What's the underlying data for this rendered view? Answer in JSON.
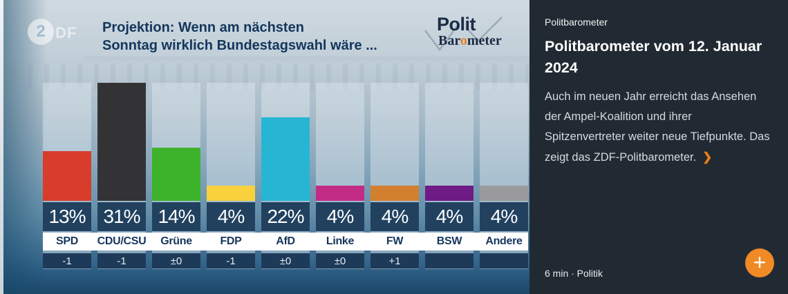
{
  "chart": {
    "zdf_logo": {
      "circle_char": "2",
      "rest": "DF"
    },
    "title_line1": "Projektion: Wenn am nächsten",
    "title_line2": "Sonntag wirklich Bundestagswahl wäre ...",
    "logo": {
      "polit": "Polit",
      "bar": "Bar",
      "o": "o",
      "meter": "meter"
    }
  },
  "chart_data": {
    "type": "bar",
    "title": "Projektion: Wenn am nächsten Sonntag wirklich Bundestagswahl wäre ...",
    "categories": [
      "SPD",
      "CDU/CSU",
      "Grüne",
      "FDP",
      "AfD",
      "Linke",
      "FW",
      "BSW",
      "Andere"
    ],
    "values": [
      13,
      31,
      14,
      4,
      22,
      4,
      4,
      4,
      4
    ],
    "value_labels": [
      "13%",
      "31%",
      "14%",
      "4%",
      "22%",
      "4%",
      "4%",
      "4%",
      "4%"
    ],
    "changes": [
      "-1",
      "-1",
      "±0",
      "-1",
      "±0",
      "±0",
      "+1",
      "",
      ""
    ],
    "colors": [
      "#d83c2b",
      "#333336",
      "#3cb32a",
      "#f8d23e",
      "#26b6d4",
      "#c22c86",
      "#d2802e",
      "#6e1b86",
      "#9a9a9c"
    ],
    "unit": "%",
    "ylim": [
      0,
      31
    ],
    "grid": false,
    "legend": "none"
  },
  "panel": {
    "kicker": "Politbarometer",
    "headline": "Politbarometer vom 12. Januar 2024",
    "body": "Auch im neuen Jahr erreicht das Ansehen der Ampel-Koalition und ihrer Spitzenvertreter weiter neue Tiefpunkte. Das zeigt das ZDF-Politbarometer.",
    "read_more_chevron": "❯",
    "meta": "6 min · Politik",
    "add_button_label": "+",
    "accent_color": "#ef8a25"
  }
}
